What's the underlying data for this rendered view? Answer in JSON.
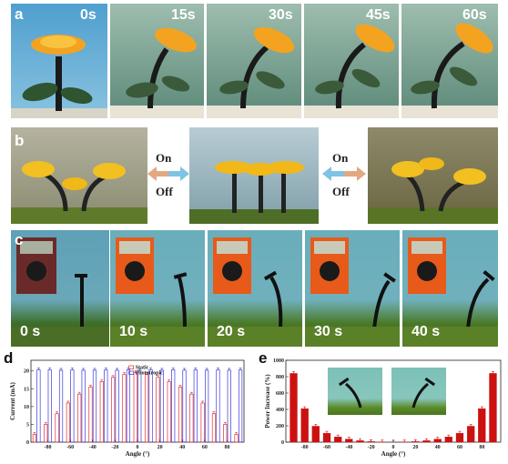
{
  "figure": {
    "panel_a": {
      "label": "a",
      "times": [
        "0s",
        "15s",
        "30s",
        "45s",
        "60s"
      ]
    },
    "panel_b": {
      "label": "b",
      "on": "On",
      "off": "Off",
      "on2": "On",
      "off2": "Off"
    },
    "panel_c": {
      "label": "c",
      "times": [
        "0 s",
        "10 s",
        "20 s",
        "30 s",
        "40 s"
      ],
      "meter_readings": [
        "",
        "",
        "",
        "",
        ""
      ]
    },
    "panel_d": {
      "label": "d"
    },
    "panel_e": {
      "label": "e"
    }
  },
  "chart_data": [
    {
      "type": "bar",
      "panel": "d",
      "xlabel": "Angle (°)",
      "ylabel": "Current (mA)",
      "xlim": [
        -95,
        95
      ],
      "ylim": [
        0,
        23
      ],
      "xticks": [
        -80,
        -60,
        -40,
        -20,
        0,
        20,
        40,
        60,
        80
      ],
      "yticks": [
        0,
        5,
        10,
        15,
        20
      ],
      "legend": {
        "placement": "top-center"
      },
      "x": [
        -90,
        -80,
        -70,
        -60,
        -50,
        -40,
        -30,
        -20,
        -10,
        0,
        10,
        20,
        30,
        40,
        50,
        60,
        70,
        80,
        90
      ],
      "series": [
        {
          "name": "Static",
          "color": "#e03030",
          "values": [
            2.2,
            5.0,
            8.0,
            11.0,
            13.5,
            15.5,
            17.0,
            18.2,
            19.0,
            19.5,
            19.0,
            18.2,
            17.0,
            15.5,
            13.5,
            11.0,
            8.0,
            5.0,
            2.2
          ]
        },
        {
          "name": "Phototropic",
          "color": "#3a3ad8",
          "values": [
            20.3,
            20.3,
            20.2,
            20.3,
            20.2,
            20.2,
            20.3,
            20.2,
            20.3,
            20.2,
            20.3,
            20.2,
            20.3,
            20.2,
            20.3,
            20.2,
            20.3,
            20.2,
            20.3
          ]
        }
      ]
    },
    {
      "type": "bar",
      "panel": "e",
      "xlabel": "Angle (°)",
      "ylabel": "Power Increase (%)",
      "xlim": [
        -97,
        97
      ],
      "ylim": [
        0,
        1000
      ],
      "xticks": [
        -80,
        -60,
        -40,
        -20,
        0,
        20,
        40,
        60,
        80
      ],
      "yticks": [
        0,
        200,
        400,
        600,
        800,
        1000
      ],
      "x": [
        -90,
        -80,
        -70,
        -60,
        -50,
        -40,
        -30,
        -20,
        -10,
        0,
        10,
        20,
        30,
        40,
        50,
        60,
        70,
        80,
        90
      ],
      "series": [
        {
          "name": "",
          "color": "#cc1111",
          "values": [
            840,
            410,
            195,
            110,
            65,
            38,
            20,
            8,
            3,
            0,
            3,
            8,
            20,
            38,
            65,
            110,
            195,
            410,
            840
          ]
        }
      ]
    }
  ]
}
